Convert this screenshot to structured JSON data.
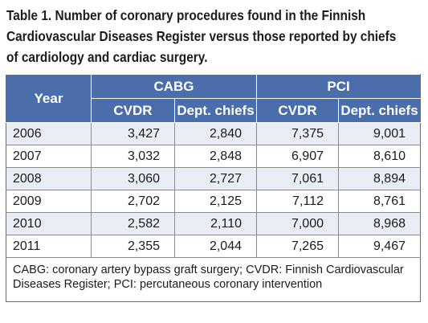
{
  "caption": {
    "line1": "Table 1. Number of coronary procedures found in the Finnish",
    "line2": "Cardiovascular Diseases Register versus those reported by chiefs",
    "line3": "of cardiology and cardiac surgery."
  },
  "table": {
    "year_header": "Year",
    "group_headers": [
      "CABG",
      "PCI"
    ],
    "sub_headers": [
      "CVDR",
      "Dept. chiefs",
      "CVDR",
      "Dept. chiefs"
    ],
    "rows": [
      {
        "year": "2006",
        "values": [
          "3,427",
          "2,840",
          "7,375",
          "9,001"
        ]
      },
      {
        "year": "2007",
        "values": [
          "3,032",
          "2,848",
          "6,907",
          "8,610"
        ]
      },
      {
        "year": "2008",
        "values": [
          "3,060",
          "2,727",
          "7,061",
          "8,894"
        ]
      },
      {
        "year": "2009",
        "values": [
          "2,702",
          "2,125",
          "7,112",
          "8,761"
        ]
      },
      {
        "year": "2010",
        "values": [
          "2,582",
          "2,110",
          "7,000",
          "8,968"
        ]
      },
      {
        "year": "2011",
        "values": [
          "2,355",
          "2,044",
          "7,265",
          "9,467"
        ]
      }
    ],
    "footnote": "CABG: coronary artery bypass graft surgery; CVDR: Finnish Cardiovascular Diseases Register; PCI: percutaneous coronary intervention"
  },
  "colors": {
    "header_bg": "#4a6eac",
    "stripe_bg": "#e8edf6"
  }
}
